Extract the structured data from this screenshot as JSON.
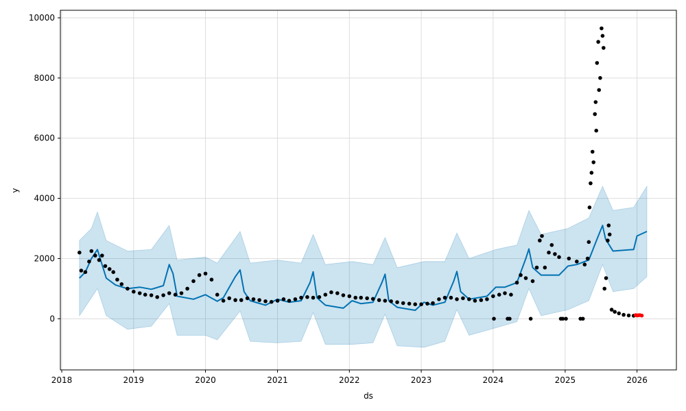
{
  "chart_data": {
    "type": "scatter",
    "title": "",
    "xlabel": "ds",
    "ylabel": "y",
    "grid": true,
    "x_ticks": [
      "2018",
      "2019",
      "2020",
      "2021",
      "2022",
      "2023",
      "2024",
      "2025",
      "2026"
    ],
    "y_ticks": [
      "0",
      "2000",
      "4000",
      "6000",
      "8000",
      "10000"
    ],
    "xlim": [
      "2017-12-25",
      "2026-07-20"
    ],
    "ylim": [
      -1700,
      10250
    ],
    "colors": {
      "actual": "#000000",
      "recent": "#ff0000",
      "forecast": "#0072b2",
      "interval": "#0072b2",
      "grid": "#dddddd"
    },
    "series": [
      {
        "role": "forecast",
        "points": [
          [
            "2018-04-01",
            1350
          ],
          [
            "2018-05-01",
            1550
          ],
          [
            "2018-06-01",
            2000
          ],
          [
            "2018-07-01",
            2300
          ],
          [
            "2018-07-15",
            2000
          ],
          [
            "2018-08-15",
            1350
          ],
          [
            "2018-10-01",
            1120
          ],
          [
            "2018-12-01",
            1000
          ],
          [
            "2019-02-01",
            1050
          ],
          [
            "2019-04-01",
            980
          ],
          [
            "2019-06-01",
            1100
          ],
          [
            "2019-07-01",
            1800
          ],
          [
            "2019-07-20",
            1500
          ],
          [
            "2019-08-10",
            750
          ],
          [
            "2019-11-01",
            650
          ],
          [
            "2020-01-01",
            800
          ],
          [
            "2020-03-01",
            580
          ],
          [
            "2020-04-01",
            700
          ],
          [
            "2020-06-01",
            1400
          ],
          [
            "2020-06-25",
            1620
          ],
          [
            "2020-07-15",
            900
          ],
          [
            "2020-08-15",
            600
          ],
          [
            "2020-11-01",
            450
          ],
          [
            "2021-01-01",
            650
          ],
          [
            "2021-03-01",
            550
          ],
          [
            "2021-05-01",
            600
          ],
          [
            "2021-06-15",
            1200
          ],
          [
            "2021-07-01",
            1560
          ],
          [
            "2021-07-20",
            700
          ],
          [
            "2021-09-01",
            450
          ],
          [
            "2021-12-01",
            350
          ],
          [
            "2022-01-15",
            600
          ],
          [
            "2022-03-01",
            500
          ],
          [
            "2022-05-01",
            550
          ],
          [
            "2022-06-15",
            1200
          ],
          [
            "2022-07-01",
            1480
          ],
          [
            "2022-07-20",
            600
          ],
          [
            "2022-09-01",
            380
          ],
          [
            "2022-12-01",
            280
          ],
          [
            "2023-01-15",
            550
          ],
          [
            "2023-03-01",
            450
          ],
          [
            "2023-05-01",
            550
          ],
          [
            "2023-06-15",
            1250
          ],
          [
            "2023-07-01",
            1570
          ],
          [
            "2023-07-20",
            900
          ],
          [
            "2023-09-01",
            650
          ],
          [
            "2023-12-01",
            750
          ],
          [
            "2024-01-15",
            1050
          ],
          [
            "2024-03-01",
            1050
          ],
          [
            "2024-05-01",
            1200
          ],
          [
            "2024-06-15",
            2000
          ],
          [
            "2024-07-01",
            2320
          ],
          [
            "2024-07-20",
            1700
          ],
          [
            "2024-09-01",
            1450
          ],
          [
            "2024-12-01",
            1450
          ],
          [
            "2025-01-15",
            1750
          ],
          [
            "2025-03-01",
            1800
          ],
          [
            "2025-05-01",
            1950
          ],
          [
            "2025-06-15",
            2700
          ],
          [
            "2025-07-10",
            3100
          ],
          [
            "2025-07-25",
            2650
          ],
          [
            "2025-09-01",
            2250
          ],
          [
            "2025-11-01",
            2280
          ],
          [
            "2025-12-15",
            2300
          ],
          [
            "2026-01-01",
            2750
          ],
          [
            "2026-02-20",
            2900
          ]
        ]
      },
      {
        "role": "interval",
        "upper": [
          [
            "2018-04-01",
            2600
          ],
          [
            "2018-06-01",
            3000
          ],
          [
            "2018-07-01",
            3550
          ],
          [
            "2018-08-15",
            2600
          ],
          [
            "2018-12-01",
            2250
          ],
          [
            "2019-04-01",
            2300
          ],
          [
            "2019-07-01",
            3100
          ],
          [
            "2019-08-10",
            1950
          ],
          [
            "2020-01-01",
            2050
          ],
          [
            "2020-03-01",
            1850
          ],
          [
            "2020-06-25",
            2900
          ],
          [
            "2020-08-15",
            1850
          ],
          [
            "2021-01-01",
            1950
          ],
          [
            "2021-05-01",
            1850
          ],
          [
            "2021-07-01",
            2800
          ],
          [
            "2021-09-01",
            1800
          ],
          [
            "2022-01-15",
            1900
          ],
          [
            "2022-05-01",
            1800
          ],
          [
            "2022-07-01",
            2700
          ],
          [
            "2022-09-01",
            1700
          ],
          [
            "2023-01-15",
            1900
          ],
          [
            "2023-05-01",
            1900
          ],
          [
            "2023-07-01",
            2850
          ],
          [
            "2023-09-01",
            2000
          ],
          [
            "2024-01-15",
            2300
          ],
          [
            "2024-05-01",
            2450
          ],
          [
            "2024-07-01",
            3600
          ],
          [
            "2024-09-01",
            2800
          ],
          [
            "2025-01-15",
            3000
          ],
          [
            "2025-05-01",
            3350
          ],
          [
            "2025-07-10",
            4400
          ],
          [
            "2025-09-01",
            3600
          ],
          [
            "2025-12-15",
            3700
          ],
          [
            "2026-02-20",
            4400
          ]
        ],
        "lower": [
          [
            "2018-04-01",
            100
          ],
          [
            "2018-06-01",
            700
          ],
          [
            "2018-07-01",
            1000
          ],
          [
            "2018-08-15",
            100
          ],
          [
            "2018-12-01",
            -350
          ],
          [
            "2019-04-01",
            -250
          ],
          [
            "2019-07-01",
            500
          ],
          [
            "2019-08-10",
            -550
          ],
          [
            "2020-01-01",
            -550
          ],
          [
            "2020-03-01",
            -700
          ],
          [
            "2020-06-25",
            250
          ],
          [
            "2020-08-15",
            -750
          ],
          [
            "2021-01-01",
            -800
          ],
          [
            "2021-05-01",
            -750
          ],
          [
            "2021-07-01",
            200
          ],
          [
            "2021-09-01",
            -850
          ],
          [
            "2022-01-15",
            -850
          ],
          [
            "2022-05-01",
            -800
          ],
          [
            "2022-07-01",
            150
          ],
          [
            "2022-09-01",
            -900
          ],
          [
            "2023-01-15",
            -950
          ],
          [
            "2023-05-01",
            -750
          ],
          [
            "2023-07-01",
            300
          ],
          [
            "2023-09-01",
            -550
          ],
          [
            "2024-01-15",
            -300
          ],
          [
            "2024-05-01",
            -100
          ],
          [
            "2024-07-01",
            1000
          ],
          [
            "2024-09-01",
            100
          ],
          [
            "2025-01-15",
            300
          ],
          [
            "2025-05-01",
            600
          ],
          [
            "2025-07-10",
            1800
          ],
          [
            "2025-09-01",
            900
          ],
          [
            "2025-12-15",
            1000
          ],
          [
            "2026-02-20",
            1400
          ]
        ]
      },
      {
        "role": "actual",
        "points": [
          [
            "2018-04-01",
            2200
          ],
          [
            "2018-04-10",
            1600
          ],
          [
            "2018-05-01",
            1550
          ],
          [
            "2018-05-20",
            1900
          ],
          [
            "2018-06-01",
            2250
          ],
          [
            "2018-06-20",
            2100
          ],
          [
            "2018-07-10",
            1950
          ],
          [
            "2018-07-25",
            2100
          ],
          [
            "2018-08-10",
            1750
          ],
          [
            "2018-09-01",
            1650
          ],
          [
            "2018-09-20",
            1550
          ],
          [
            "2018-10-10",
            1300
          ],
          [
            "2018-11-01",
            1150
          ],
          [
            "2018-12-01",
            1000
          ],
          [
            "2019-01-01",
            900
          ],
          [
            "2019-02-01",
            850
          ],
          [
            "2019-03-01",
            800
          ],
          [
            "2019-04-01",
            780
          ],
          [
            "2019-05-01",
            720
          ],
          [
            "2019-06-01",
            780
          ],
          [
            "2019-07-01",
            850
          ],
          [
            "2019-08-01",
            800
          ],
          [
            "2019-09-01",
            850
          ],
          [
            "2019-10-01",
            1000
          ],
          [
            "2019-11-01",
            1250
          ],
          [
            "2019-12-01",
            1450
          ],
          [
            "2020-01-01",
            1500
          ],
          [
            "2020-02-01",
            1300
          ],
          [
            "2020-03-01",
            800
          ],
          [
            "2020-04-01",
            600
          ],
          [
            "2020-05-01",
            680
          ],
          [
            "2020-06-01",
            620
          ],
          [
            "2020-07-01",
            620
          ],
          [
            "2020-08-01",
            680
          ],
          [
            "2020-09-01",
            650
          ],
          [
            "2020-10-01",
            620
          ],
          [
            "2020-11-01",
            580
          ],
          [
            "2020-12-01",
            560
          ],
          [
            "2021-01-01",
            600
          ],
          [
            "2021-02-01",
            650
          ],
          [
            "2021-03-01",
            600
          ],
          [
            "2021-04-01",
            650
          ],
          [
            "2021-05-01",
            700
          ],
          [
            "2021-06-01",
            720
          ],
          [
            "2021-07-01",
            700
          ],
          [
            "2021-08-01",
            720
          ],
          [
            "2021-09-01",
            800
          ],
          [
            "2021-10-01",
            880
          ],
          [
            "2021-11-01",
            850
          ],
          [
            "2021-12-01",
            780
          ],
          [
            "2022-01-01",
            750
          ],
          [
            "2022-02-01",
            700
          ],
          [
            "2022-03-01",
            700
          ],
          [
            "2022-04-01",
            680
          ],
          [
            "2022-05-01",
            660
          ],
          [
            "2022-06-01",
            620
          ],
          [
            "2022-07-01",
            600
          ],
          [
            "2022-08-01",
            580
          ],
          [
            "2022-09-01",
            550
          ],
          [
            "2022-10-01",
            520
          ],
          [
            "2022-11-01",
            500
          ],
          [
            "2022-12-01",
            480
          ],
          [
            "2023-01-01",
            480
          ],
          [
            "2023-02-01",
            500
          ],
          [
            "2023-03-01",
            520
          ],
          [
            "2023-04-01",
            650
          ],
          [
            "2023-05-01",
            700
          ],
          [
            "2023-06-01",
            700
          ],
          [
            "2023-07-01",
            650
          ],
          [
            "2023-08-01",
            680
          ],
          [
            "2023-09-01",
            650
          ],
          [
            "2023-10-01",
            600
          ],
          [
            "2023-11-01",
            620
          ],
          [
            "2023-12-01",
            650
          ],
          [
            "2024-01-01",
            750
          ],
          [
            "2024-01-05",
            0
          ],
          [
            "2024-02-01",
            800
          ],
          [
            "2024-03-01",
            850
          ],
          [
            "2024-03-15",
            0
          ],
          [
            "2024-03-25",
            0
          ],
          [
            "2024-04-01",
            800
          ],
          [
            "2024-05-01",
            1200
          ],
          [
            "2024-05-20",
            1450
          ],
          [
            "2024-06-15",
            1350
          ],
          [
            "2024-07-10",
            0
          ],
          [
            "2024-07-20",
            1250
          ],
          [
            "2024-08-10",
            1700
          ],
          [
            "2024-08-25",
            2600
          ],
          [
            "2024-09-05",
            2750
          ],
          [
            "2024-09-20",
            1700
          ],
          [
            "2024-10-10",
            2200
          ],
          [
            "2024-10-25",
            2450
          ],
          [
            "2024-11-10",
            2150
          ],
          [
            "2024-12-01",
            2050
          ],
          [
            "2024-12-10",
            0
          ],
          [
            "2024-12-20",
            0
          ],
          [
            "2025-01-05",
            0
          ],
          [
            "2025-01-20",
            2000
          ],
          [
            "2025-03-01",
            1900
          ],
          [
            "2025-03-20",
            0
          ],
          [
            "2025-04-01",
            0
          ],
          [
            "2025-04-10",
            1800
          ],
          [
            "2025-04-25",
            2000
          ],
          [
            "2025-05-01",
            2550
          ],
          [
            "2025-05-05",
            3700
          ],
          [
            "2025-05-10",
            4500
          ],
          [
            "2025-05-15",
            4850
          ],
          [
            "2025-05-20",
            5550
          ],
          [
            "2025-05-25",
            5200
          ],
          [
            "2025-06-01",
            6800
          ],
          [
            "2025-06-05",
            7200
          ],
          [
            "2025-06-08",
            6250
          ],
          [
            "2025-06-12",
            8500
          ],
          [
            "2025-06-18",
            9200
          ],
          [
            "2025-06-22",
            7600
          ],
          [
            "2025-06-28",
            8000
          ],
          [
            "2025-07-05",
            9650
          ],
          [
            "2025-07-10",
            9400
          ],
          [
            "2025-07-15",
            9000
          ],
          [
            "2025-07-20",
            1000
          ],
          [
            "2025-07-28",
            1350
          ],
          [
            "2025-08-05",
            2600
          ],
          [
            "2025-08-10",
            3100
          ],
          [
            "2025-08-15",
            2800
          ],
          [
            "2025-08-25",
            300
          ],
          [
            "2025-09-10",
            230
          ],
          [
            "2025-10-01",
            180
          ],
          [
            "2025-10-25",
            130
          ],
          [
            "2025-11-20",
            110
          ],
          [
            "2025-12-15",
            100
          ]
        ]
      },
      {
        "role": "recent",
        "points": [
          [
            "2025-12-25",
            120
          ],
          [
            "2026-01-01",
            110
          ],
          [
            "2026-01-08",
            115
          ],
          [
            "2026-01-15",
            120
          ],
          [
            "2026-01-25",
            105
          ]
        ]
      }
    ]
  }
}
